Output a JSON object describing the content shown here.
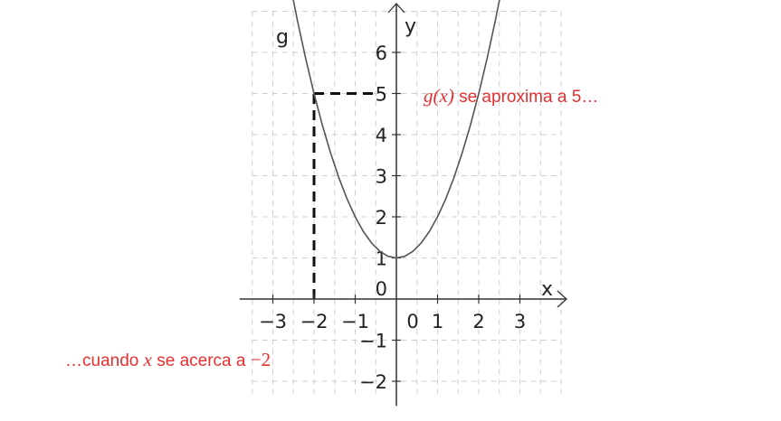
{
  "chart_data": {
    "type": "line",
    "function_label": "g",
    "xlabel": "x",
    "ylabel": "y",
    "xlim": [
      -3.5,
      4.0
    ],
    "ylim": [
      -2.3,
      7.0
    ],
    "grid": true,
    "x_ticks": [
      {
        "value": -3,
        "label": "−3"
      },
      {
        "value": -2,
        "label": "−2"
      },
      {
        "value": -1,
        "label": "−1"
      },
      {
        "value": 0,
        "label": "0"
      },
      {
        "value": 1,
        "label": "1"
      },
      {
        "value": 2,
        "label": "2"
      },
      {
        "value": 3,
        "label": "3"
      }
    ],
    "y_ticks": [
      {
        "value": -2,
        "label": "−2"
      },
      {
        "value": -1,
        "label": "−1"
      },
      {
        "value": 0,
        "label": "0"
      },
      {
        "value": 1,
        "label": "1"
      },
      {
        "value": 2,
        "label": "2"
      },
      {
        "value": 3,
        "label": "3"
      },
      {
        "value": 4,
        "label": "4"
      },
      {
        "value": 5,
        "label": "5"
      },
      {
        "value": 6,
        "label": "6"
      }
    ],
    "series": [
      {
        "name": "g",
        "x": [
          -2.6,
          -2.4,
          -2.2,
          -2.0,
          -1.8,
          -1.6,
          -1.4,
          -1.2,
          -1.0,
          -0.8,
          -0.6,
          -0.4,
          -0.2,
          0.0,
          0.2,
          0.4,
          0.6,
          0.8,
          1.0,
          1.2,
          1.4,
          1.6,
          1.8,
          2.0,
          2.2,
          2.4,
          2.6
        ],
        "y": [
          7.76,
          6.76,
          5.84,
          5.0,
          4.24,
          3.56,
          2.96,
          2.44,
          2.0,
          1.64,
          1.36,
          1.16,
          1.04,
          1.0,
          1.04,
          1.16,
          1.36,
          1.64,
          2.0,
          2.44,
          2.96,
          3.56,
          4.24,
          5.0,
          5.84,
          6.76,
          7.76
        ],
        "color": "#555555"
      }
    ],
    "guide_point": {
      "x": -2,
      "y": 5
    },
    "annotations": {
      "right": {
        "math": "g(x)",
        "text": " se aproxima a 5…"
      },
      "left": {
        "prefix": "…cuando ",
        "var": "x",
        "mid": " se acerca a ",
        "value": "−2"
      }
    },
    "colors": {
      "curve": "#555555",
      "axes": "#333333",
      "grid": "#cfcfcf",
      "annotation": "#e3302f",
      "guide": "#111111"
    }
  }
}
